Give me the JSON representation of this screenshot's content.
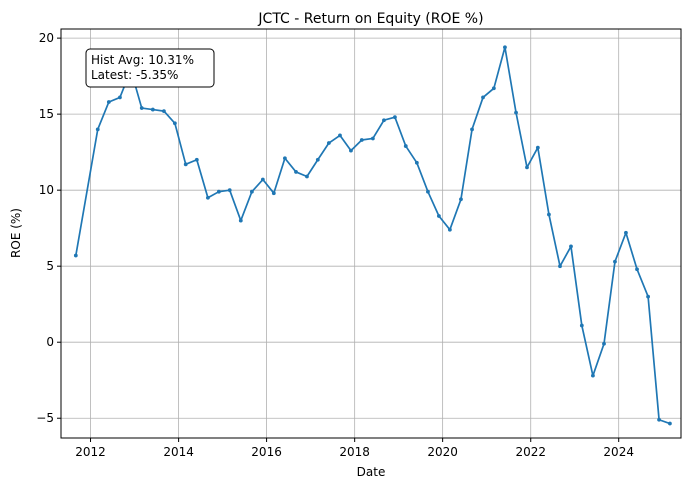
{
  "chart_data": {
    "type": "line",
    "title": "JCTC - Return on Equity (ROE %)",
    "xlabel": "Date",
    "ylabel": "ROE (%)",
    "xlim": [
      "2011-05-01",
      "2025-06-01"
    ],
    "ylim": [
      -6.3,
      20.6
    ],
    "x_ticks": [
      "2012-01-01",
      "2014-01-01",
      "2016-01-01",
      "2018-01-01",
      "2020-01-01",
      "2022-01-01",
      "2024-01-01"
    ],
    "x_tick_labels": [
      "2012",
      "2014",
      "2016",
      "2018",
      "2020",
      "2022",
      "2024"
    ],
    "y_ticks": [
      -5,
      0,
      5,
      10,
      15,
      20
    ],
    "y_tick_labels": [
      "−5",
      "0",
      "5",
      "10",
      "15",
      "20"
    ],
    "grid": true,
    "annotation": {
      "lines": [
        "Hist Avg: 10.31%",
        "Latest: -5.35%"
      ],
      "position": "top-left"
    },
    "colors": {
      "line": "#1f77b4",
      "grid": "#b0b0b0",
      "axis": "#000000"
    },
    "series": [
      {
        "x": [
          "2011-09-01",
          "2012-03-01",
          "2012-06-01",
          "2012-09-01",
          "2012-12-01",
          "2013-03-01",
          "2013-06-01",
          "2013-09-01",
          "2013-12-01",
          "2014-03-01",
          "2014-06-01",
          "2014-09-01",
          "2014-12-01",
          "2015-03-01",
          "2015-06-01",
          "2015-09-01",
          "2015-12-01",
          "2016-03-01",
          "2016-06-01",
          "2016-09-01",
          "2016-12-01",
          "2017-03-01",
          "2017-06-01",
          "2017-09-01",
          "2017-12-01",
          "2018-03-01",
          "2018-06-01",
          "2018-09-01",
          "2018-12-01",
          "2019-03-01",
          "2019-06-01",
          "2019-09-01",
          "2019-12-01",
          "2020-03-01",
          "2020-06-01",
          "2020-09-01",
          "2020-12-01",
          "2021-03-01",
          "2021-06-01",
          "2021-09-01",
          "2021-12-01",
          "2022-03-01",
          "2022-06-01",
          "2022-09-01",
          "2022-12-01",
          "2023-03-01",
          "2023-06-01",
          "2023-09-01",
          "2023-12-01",
          "2024-03-01",
          "2024-06-01",
          "2024-09-01",
          "2024-12-01",
          "2025-03-01"
        ],
        "values": [
          5.7,
          14.0,
          15.8,
          16.1,
          17.9,
          15.4,
          15.3,
          15.2,
          14.4,
          11.7,
          12.0,
          9.5,
          9.9,
          10.0,
          8.0,
          9.9,
          10.7,
          9.8,
          12.1,
          11.2,
          10.9,
          12.0,
          13.1,
          13.6,
          12.6,
          13.3,
          13.4,
          14.6,
          14.8,
          12.9,
          11.8,
          9.9,
          8.3,
          7.4,
          9.4,
          14.0,
          16.1,
          16.7,
          19.4,
          15.1,
          11.5,
          12.8,
          8.4,
          5.0,
          6.3,
          1.1,
          -2.2,
          -0.1,
          5.3,
          7.2,
          4.8,
          3.0,
          -5.1,
          -5.35
        ]
      }
    ]
  }
}
